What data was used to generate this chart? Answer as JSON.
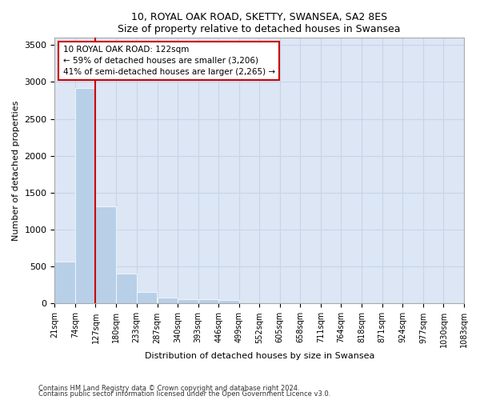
{
  "title": "10, ROYAL OAK ROAD, SKETTY, SWANSEA, SA2 8ES",
  "subtitle": "Size of property relative to detached houses in Swansea",
  "xlabel": "Distribution of detached houses by size in Swansea",
  "ylabel": "Number of detached properties",
  "bins": [
    "21sqm",
    "74sqm",
    "127sqm",
    "180sqm",
    "233sqm",
    "287sqm",
    "340sqm",
    "393sqm",
    "446sqm",
    "499sqm",
    "552sqm",
    "605sqm",
    "658sqm",
    "711sqm",
    "764sqm",
    "818sqm",
    "871sqm",
    "924sqm",
    "977sqm",
    "1030sqm",
    "1083sqm"
  ],
  "bin_edges": [
    21,
    74,
    127,
    180,
    233,
    287,
    340,
    393,
    446,
    499,
    552,
    605,
    658,
    711,
    764,
    818,
    871,
    924,
    977,
    1030,
    1083
  ],
  "counts": [
    570,
    2920,
    1310,
    410,
    155,
    80,
    60,
    55,
    45,
    0,
    0,
    0,
    0,
    0,
    0,
    0,
    0,
    0,
    0,
    0
  ],
  "bar_color": "#b8cfe8",
  "grid_color": "#c8d4e8",
  "background_color": "#dce6f5",
  "red_line_x": 127,
  "red_line_color": "#cc0000",
  "annotation_line1": "10 ROYAL OAK ROAD: 122sqm",
  "annotation_line2": "← 59% of detached houses are smaller (3,206)",
  "annotation_line3": "41% of semi-detached houses are larger (2,265) →",
  "annotation_box_color": "#ffffff",
  "annotation_border_color": "#cc0000",
  "ylim": [
    0,
    3600
  ],
  "yticks": [
    0,
    500,
    1000,
    1500,
    2000,
    2500,
    3000,
    3500
  ],
  "footnote1": "Contains HM Land Registry data © Crown copyright and database right 2024.",
  "footnote2": "Contains public sector information licensed under the Open Government Licence v3.0."
}
